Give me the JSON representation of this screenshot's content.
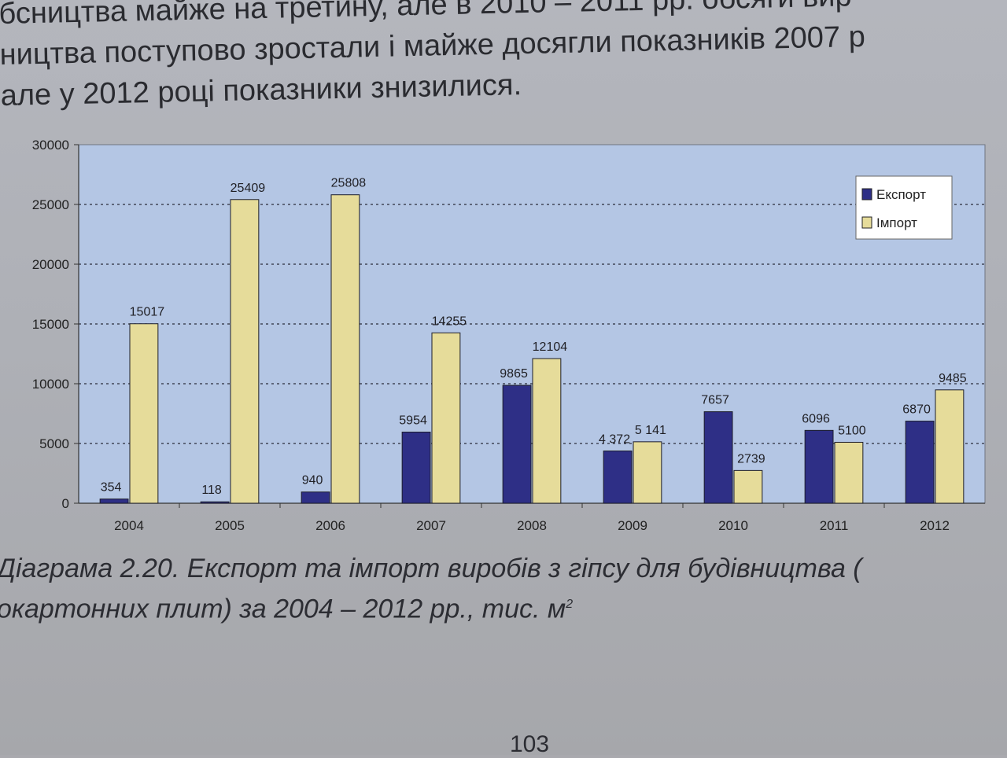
{
  "page": {
    "text_lines": [
      "бсництва майже на третину, але в 2010 – 2011 рр. обсяги вир",
      "ництва поступово зростали і майже досягли показників 2007 р",
      "але у 2012 році показники знизилися."
    ],
    "caption_line1": "Діаграма 2.20. Експорт та імпорт виробів з гіпсу для будівництва (",
    "caption_line2": "окартонних плит) за 2004 – 2012 рр., тис. м",
    "caption_sup": "2",
    "page_number": "103"
  },
  "chart_data": {
    "type": "bar",
    "title": "",
    "xlabel": "",
    "ylabel": "",
    "categories": [
      "2004",
      "2005",
      "2006",
      "2007",
      "2008",
      "2009",
      "2010",
      "2011",
      "2012"
    ],
    "series": [
      {
        "name": "Експорт",
        "color": "#2e2f86",
        "values": [
          354,
          118,
          940,
          5954,
          9865,
          4372,
          7657,
          6096,
          6870
        ],
        "labels": [
          "354",
          "118",
          "940",
          "5954",
          "9865",
          "4 372",
          "7657",
          "6096",
          "6870"
        ]
      },
      {
        "name": "Імпорт",
        "color": "#e6dc9a",
        "values": [
          15017,
          25409,
          25808,
          14255,
          12104,
          5141,
          2739,
          5100,
          9485
        ],
        "labels": [
          "15017",
          "25409",
          "25808",
          "14255",
          "12104",
          "5 141",
          "2739",
          "5100",
          "9485"
        ]
      }
    ],
    "ylim": [
      0,
      30000
    ],
    "yticks": [
      "0",
      "5000",
      "10000",
      "15000",
      "20000",
      "25000",
      "30000"
    ],
    "grid": true,
    "legend_position": "top-right",
    "plot_background": "#b4c6e4"
  }
}
